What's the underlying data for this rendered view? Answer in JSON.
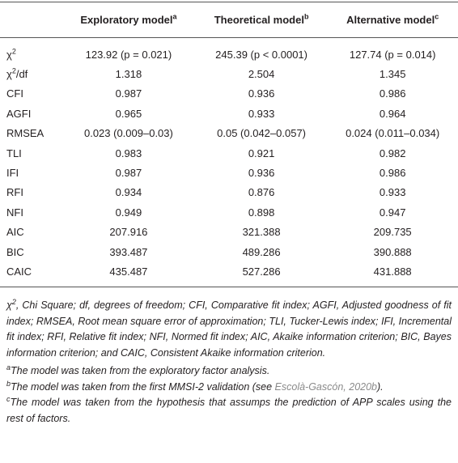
{
  "table": {
    "header": [
      {
        "text": "Exploratory model",
        "sup": "a"
      },
      {
        "text": "Theoretical model",
        "sup": "b"
      },
      {
        "text": "Alternative model",
        "sup": "c"
      }
    ],
    "rows": [
      [
        {
          "text": "χ",
          "sup": "2"
        },
        "123.92 (p = 0.021)",
        "245.39 (p < 0.0001)",
        "127.74 (p = 0.014)"
      ],
      [
        {
          "text": "χ",
          "sup": "2",
          "after": "/df"
        },
        "1.318",
        "2.504",
        "1.345"
      ],
      [
        "CFI",
        "0.987",
        "0.936",
        "0.986"
      ],
      [
        "AGFI",
        "0.965",
        "0.933",
        "0.964"
      ],
      [
        "RMSEA",
        "0.023 (0.009–0.03)",
        "0.05 (0.042–0.057)",
        "0.024 (0.011–0.034)"
      ],
      [
        "TLI",
        "0.983",
        "0.921",
        "0.982"
      ],
      [
        "IFI",
        "0.987",
        "0.936",
        "0.986"
      ],
      [
        "RFI",
        "0.934",
        "0.876",
        "0.933"
      ],
      [
        "NFI",
        "0.949",
        "0.898",
        "0.947"
      ],
      [
        "AIC",
        "207.916",
        "321.388",
        "209.735"
      ],
      [
        "BIC",
        "393.487",
        "489.286",
        "390.888"
      ],
      [
        "CAIC",
        "435.487",
        "527.286",
        "431.888"
      ]
    ]
  },
  "notes": {
    "main": {
      "text": "χ",
      "sup": "2",
      "after": ", Chi Square; df, degrees of freedom; CFI, Comparative fit index; AGFI, Adjusted goodness of fit index; RMSEA, Root mean square error of approximation; TLI, Tucker-Lewis index; IFI, Incremental fit index; RFI, Relative fit index; NFI, Normed fit index; AIC, Akaike information criterion; BIC, Bayes information criterion; and CAIC, Consistent Akaike information criterion."
    },
    "footnotes": [
      {
        "mark": "a",
        "text": "The model was taken from the exploratory factor analysis."
      },
      {
        "mark": "b",
        "text": "The model was taken from the first MMSI-2 validation (see ",
        "link": "Escolà-Gascón, 2020b",
        "after": ")."
      },
      {
        "mark": "c",
        "text": "The model was taken from the hypothesis that assumps the prediction of APP scales using the rest of factors."
      }
    ]
  }
}
